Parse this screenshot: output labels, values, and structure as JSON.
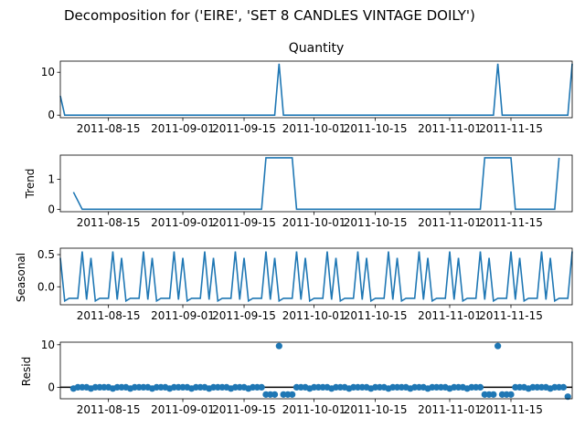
{
  "suptitle": "Decomposition for ('EIRE', 'SET 8 CANDLES VINTAGE DOILY')",
  "colors": {
    "line": "#1f77b4",
    "axis": "#000000",
    "background": "#ffffff"
  },
  "x_ticks": [
    "2011-08-15",
    "2011-09-01",
    "2011-09-15",
    "2011-10-01",
    "2011-10-15",
    "2011-11-01",
    "2011-11-15"
  ],
  "chart_data": [
    {
      "type": "line",
      "title": "Quantity",
      "ylabel": "",
      "xlim": [
        "2011-08-04",
        "2011-11-29"
      ],
      "ylim": [
        -0.6,
        12.6
      ],
      "y_ticks": [
        "0",
        "10"
      ],
      "x": [
        "2011-08-04",
        "2011-08-05",
        "2011-09-22",
        "2011-09-23",
        "2011-09-24",
        "2011-11-11",
        "2011-11-12",
        "2011-11-13",
        "2011-11-28",
        "2011-11-29"
      ],
      "series": [
        {
          "values": [
            4.5,
            0,
            0,
            12,
            0,
            0,
            12,
            0,
            0,
            12
          ]
        }
      ]
    },
    {
      "type": "line",
      "title": "",
      "ylabel": "Trend",
      "xlim": [
        "2011-08-04",
        "2011-11-29"
      ],
      "ylim": [
        -0.08,
        1.8
      ],
      "y_ticks": [
        "0",
        "1"
      ],
      "x": [
        "2011-08-07",
        "2011-08-09",
        "2011-09-19",
        "2011-09-20",
        "2011-09-26",
        "2011-09-27",
        "2011-11-08",
        "2011-11-09",
        "2011-11-15",
        "2011-11-16",
        "2011-11-25",
        "2011-11-26"
      ],
      "series": [
        {
          "values": [
            0.57,
            0,
            0,
            1.71,
            1.71,
            0,
            0,
            1.71,
            1.71,
            0,
            0,
            1.71
          ]
        }
      ]
    },
    {
      "type": "line",
      "title": "",
      "ylabel": "Seasonal",
      "xlim": [
        "2011-08-04",
        "2011-11-29"
      ],
      "ylim": [
        -0.28,
        0.6
      ],
      "y_ticks": [
        "0.5",
        "0.0"
      ],
      "period_days": 7,
      "x_start": "2011-08-04",
      "x_end": "2011-11-29",
      "series": [
        {
          "values": [
            0.45,
            -0.22,
            -0.18,
            -0.18,
            -0.18,
            0.55,
            -0.2
          ]
        }
      ]
    },
    {
      "type": "scatter",
      "title": "",
      "ylabel": "Resid",
      "xlim": [
        "2011-08-04",
        "2011-11-29"
      ],
      "ylim": [
        -2.7,
        10.6
      ],
      "y_ticks": [
        "10",
        "0"
      ],
      "zero_line": true,
      "x_start": "2011-08-07",
      "x_end": "2011-11-26",
      "series": [
        {
          "values": [
            -0.3,
            0,
            0,
            0,
            -0.3,
            0,
            0,
            0,
            0,
            -0.3,
            0,
            0,
            0,
            -0.3,
            0,
            0,
            0,
            0,
            -0.3,
            0,
            0,
            0,
            -0.3,
            0,
            0,
            0,
            0,
            -0.3,
            0,
            0,
            0,
            -0.3,
            0,
            0,
            0,
            0,
            -0.3,
            0,
            0,
            0,
            -0.3,
            0,
            0,
            0,
            -1.7,
            -1.7,
            -1.7,
            9.7,
            -1.7,
            -1.7,
            -1.7,
            0,
            0,
            0,
            -0.3,
            0,
            0,
            0,
            0,
            -0.3,
            0,
            0,
            0,
            -0.3,
            0,
            0,
            0,
            0,
            -0.3,
            0,
            0,
            0,
            -0.3,
            0,
            0,
            0,
            0,
            -0.3,
            0,
            0,
            0,
            -0.3,
            0,
            0,
            0,
            0,
            -0.3,
            0,
            0,
            0,
            -0.3,
            0,
            0,
            0,
            -1.7,
            -1.7,
            -1.7,
            9.7,
            -1.7,
            -1.7,
            -1.7,
            0,
            0,
            0,
            -0.3,
            0,
            0,
            0,
            0,
            -0.3,
            0,
            0,
            0,
            -2.2
          ]
        }
      ]
    }
  ]
}
